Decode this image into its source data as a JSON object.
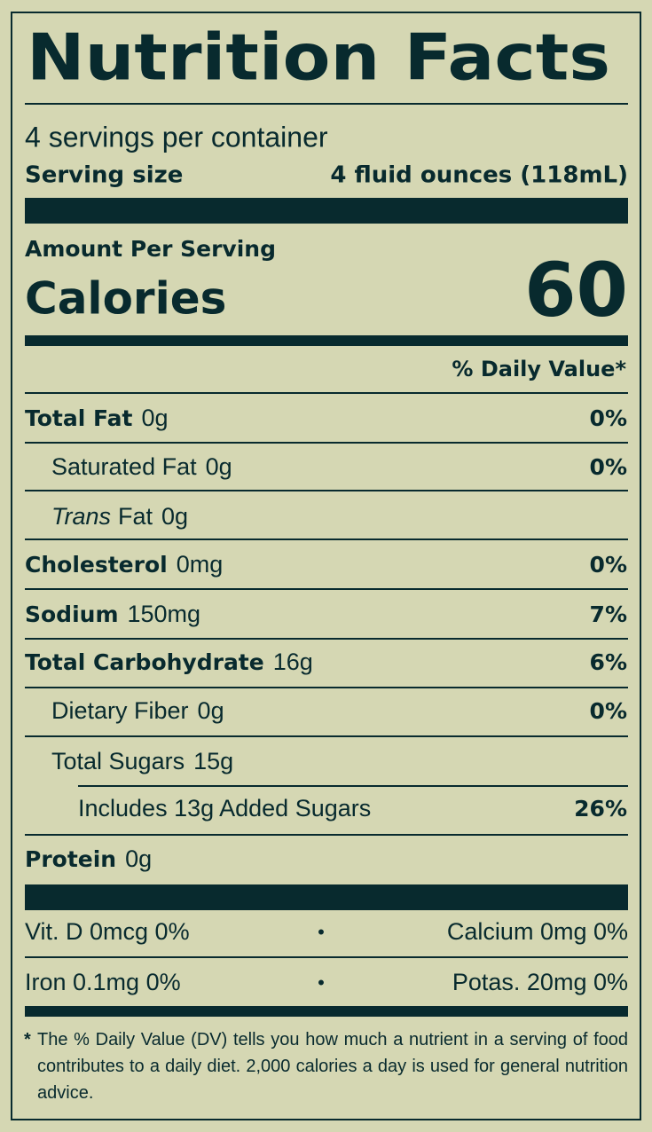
{
  "title": "Nutrition Facts",
  "servings": "4 servings per container",
  "serving_size": {
    "label": "Serving size",
    "value": "4 fluid ounces (118mL)"
  },
  "amount_per_serving": "Amount Per Serving",
  "calories": {
    "label": "Calories",
    "value": 60
  },
  "daily_value_header": "% Daily Value*",
  "nutrients": [
    {
      "name": "Total Fat",
      "amount": "0g",
      "dv": "0%"
    },
    {
      "name": "Saturated Fat",
      "amount": "0g",
      "dv": "0%"
    },
    {
      "name_italic": "Trans",
      "name": "Fat",
      "amount": "0g"
    },
    {
      "name": "Cholesterol",
      "amount": "0mg",
      "dv": "0%"
    },
    {
      "name": "Sodium",
      "amount": "150mg",
      "dv": "7%"
    },
    {
      "name": "Total Carbohydrate",
      "amount": "16g",
      "dv": "6%"
    },
    {
      "name": "Dietary Fiber",
      "amount": "0g",
      "dv": "0%"
    },
    {
      "name": "Total Sugars",
      "amount": "15g"
    },
    {
      "name": "Includes 13g Added Sugars",
      "dv": "26%"
    },
    {
      "name": "Protein",
      "amount": "0g"
    }
  ],
  "separator": "•",
  "vitamins": [
    {
      "left": "Vit. D 0mcg 0%",
      "right": "Calcium 0mg 0%"
    },
    {
      "left": "Iron 0.1mg 0%",
      "right": "Potas. 20mg 0%"
    }
  ],
  "footnote": {
    "marker": "*",
    "text": "The % Daily Value (DV) tells you how much a nutrient in a serving of food contributes to a daily diet. 2,000 calories a day is used for general nutrition advice."
  }
}
